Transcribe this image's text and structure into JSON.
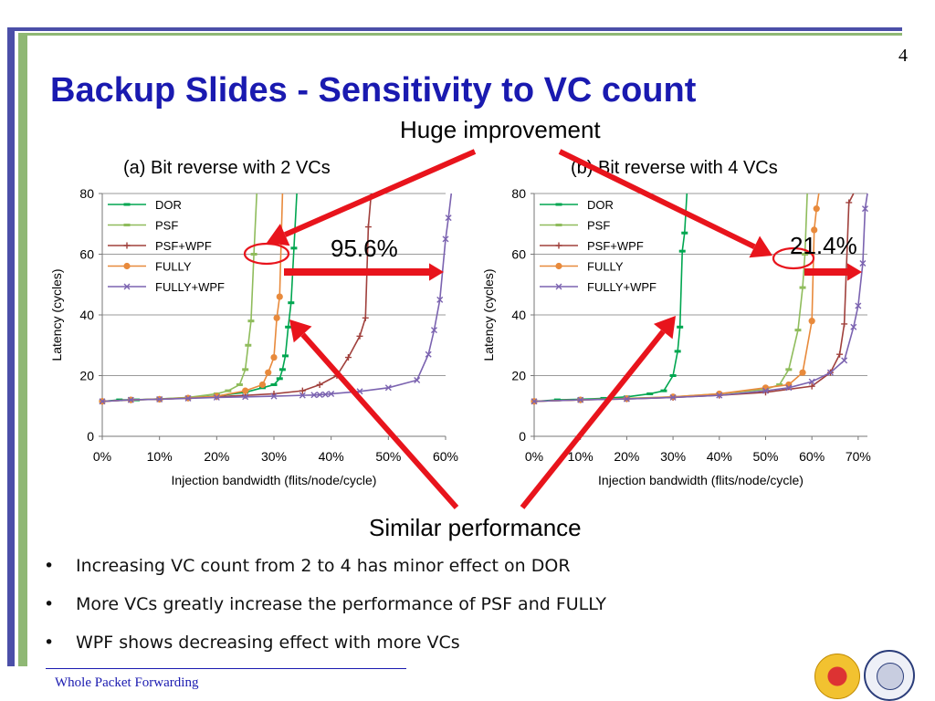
{
  "slide": {
    "page_number": "4",
    "title": "Backup Slides - Sensitivity to VC count",
    "callout_top": "Huge improvement",
    "callout_bottom": "Similar performance",
    "pct_left": "95.6%",
    "pct_right": "21.4%",
    "bullets": [
      "Increasing VC count from 2 to 4 has minor effect on DOR",
      "More VCs greatly increase the performance of PSF and FULLY",
      "WPF shows decreasing effect with more VCs"
    ],
    "bullet_symbol": "•",
    "footer": "Whole Packet Forwarding",
    "accent_color": "#1a1ab0",
    "arrow_color": "#e8141c",
    "logos": [
      "chinese-university-seal-icon",
      "university-of-toronto-crest-icon"
    ]
  },
  "chart_data": [
    {
      "type": "line",
      "title": "(a) Bit reverse with 2 VCs",
      "xlabel": "Injection bandwidth (flits/node/cycle)",
      "ylabel": "Latency (cycles)",
      "xlim": [
        0,
        0.6
      ],
      "ylim": [
        0,
        80
      ],
      "xticks": [
        "0%",
        "10%",
        "20%",
        "30%",
        "40%",
        "50%",
        "60%"
      ],
      "yticks": [
        "0",
        "20",
        "40",
        "60",
        "80"
      ],
      "grid": "horizontal",
      "legend": "top-left",
      "series": [
        {
          "name": "DOR",
          "color": "#00a650",
          "marker": "dash",
          "x": [
            0,
            0.03,
            0.06,
            0.1,
            0.15,
            0.2,
            0.25,
            0.28,
            0.3,
            0.31,
            0.315,
            0.32,
            0.325,
            0.33,
            0.335,
            0.34
          ],
          "y": [
            11.5,
            12,
            12,
            12.3,
            12.7,
            13.3,
            14.5,
            16,
            17,
            19,
            22,
            26.5,
            36,
            44,
            62,
            80
          ]
        },
        {
          "name": "PSF",
          "color": "#8fbc5c",
          "marker": "dash",
          "x": [
            0,
            0.05,
            0.1,
            0.15,
            0.2,
            0.22,
            0.24,
            0.25,
            0.255,
            0.26,
            0.265,
            0.27
          ],
          "y": [
            11.5,
            12,
            12.3,
            12.8,
            14,
            15,
            17,
            22,
            30,
            38,
            60,
            80
          ]
        },
        {
          "name": "PSF+WPF",
          "color": "#a0403c",
          "marker": "plus",
          "x": [
            0,
            0.05,
            0.1,
            0.15,
            0.2,
            0.25,
            0.3,
            0.35,
            0.38,
            0.41,
            0.43,
            0.45,
            0.46,
            0.465,
            0.47
          ],
          "y": [
            11.5,
            12,
            12.2,
            12.6,
            13,
            13.5,
            14,
            15,
            17,
            20,
            26,
            33,
            39,
            69,
            80
          ]
        },
        {
          "name": "FULLY",
          "color": "#e88a3c",
          "marker": "circle",
          "x": [
            0,
            0.05,
            0.1,
            0.15,
            0.2,
            0.25,
            0.28,
            0.29,
            0.3,
            0.305,
            0.31,
            0.315
          ],
          "y": [
            11.5,
            12,
            12.2,
            12.6,
            13.2,
            15,
            17,
            21,
            26,
            39,
            46,
            80
          ]
        },
        {
          "name": "FULLY+WPF",
          "color": "#7b63b0",
          "marker": "cross",
          "x": [
            0,
            0.05,
            0.1,
            0.15,
            0.2,
            0.25,
            0.3,
            0.35,
            0.37,
            0.38,
            0.39,
            0.4,
            0.45,
            0.5,
            0.55,
            0.57,
            0.58,
            0.59,
            0.6,
            0.605,
            0.61
          ],
          "y": [
            11.5,
            12,
            12.2,
            12.5,
            12.8,
            13,
            13.2,
            13.5,
            13.6,
            13.7,
            13.8,
            14,
            14.8,
            16,
            18.5,
            27,
            35,
            45,
            65,
            72,
            80
          ]
        }
      ]
    },
    {
      "type": "line",
      "title": "(b) Bit reverse with 4 VCs",
      "xlabel": "Injection bandwidth (flits/node/cycle)",
      "ylabel": "Latency (cycles)",
      "xlim": [
        0,
        0.72
      ],
      "ylim": [
        0,
        80
      ],
      "xticks": [
        "0%",
        "10%",
        "20%",
        "30%",
        "40%",
        "50%",
        "60%",
        "70%"
      ],
      "yticks": [
        "0",
        "20",
        "40",
        "60",
        "80"
      ],
      "grid": "horizontal",
      "legend": "top-left",
      "series": [
        {
          "name": "DOR",
          "color": "#00a650",
          "marker": "dash",
          "x": [
            0,
            0.05,
            0.1,
            0.15,
            0.2,
            0.25,
            0.28,
            0.3,
            0.31,
            0.315,
            0.32,
            0.325,
            0.33
          ],
          "y": [
            11.5,
            12,
            12.2,
            12.5,
            13,
            14,
            15,
            20,
            28,
            36,
            61,
            67,
            80
          ]
        },
        {
          "name": "PSF",
          "color": "#8fbc5c",
          "marker": "dash",
          "x": [
            0,
            0.1,
            0.2,
            0.3,
            0.4,
            0.5,
            0.53,
            0.55,
            0.57,
            0.58,
            0.585,
            0.59
          ],
          "y": [
            11.5,
            12,
            12.5,
            13,
            14,
            15.5,
            17,
            22,
            35,
            49,
            60,
            80
          ]
        },
        {
          "name": "PSF+WPF",
          "color": "#a0403c",
          "marker": "plus",
          "x": [
            0,
            0.1,
            0.2,
            0.3,
            0.4,
            0.5,
            0.6,
            0.64,
            0.66,
            0.67,
            0.68,
            0.69
          ],
          "y": [
            11.5,
            12,
            12.3,
            12.8,
            13.5,
            14.5,
            16.5,
            21,
            27,
            37,
            77,
            80
          ]
        },
        {
          "name": "FULLY",
          "color": "#e88a3c",
          "marker": "circle",
          "x": [
            0,
            0.1,
            0.2,
            0.3,
            0.4,
            0.5,
            0.55,
            0.58,
            0.6,
            0.605,
            0.61,
            0.615
          ],
          "y": [
            11.5,
            12,
            12.4,
            13,
            14,
            16,
            17,
            21,
            38,
            68,
            75,
            80
          ]
        },
        {
          "name": "FULLY+WPF",
          "color": "#7b63b0",
          "marker": "cross",
          "x": [
            0,
            0.1,
            0.2,
            0.3,
            0.4,
            0.5,
            0.55,
            0.6,
            0.64,
            0.67,
            0.69,
            0.7,
            0.71,
            0.715,
            0.72
          ],
          "y": [
            11.5,
            12,
            12.3,
            12.8,
            13.5,
            15,
            16,
            18,
            21,
            25,
            36,
            43,
            57,
            75,
            80
          ]
        }
      ]
    }
  ]
}
